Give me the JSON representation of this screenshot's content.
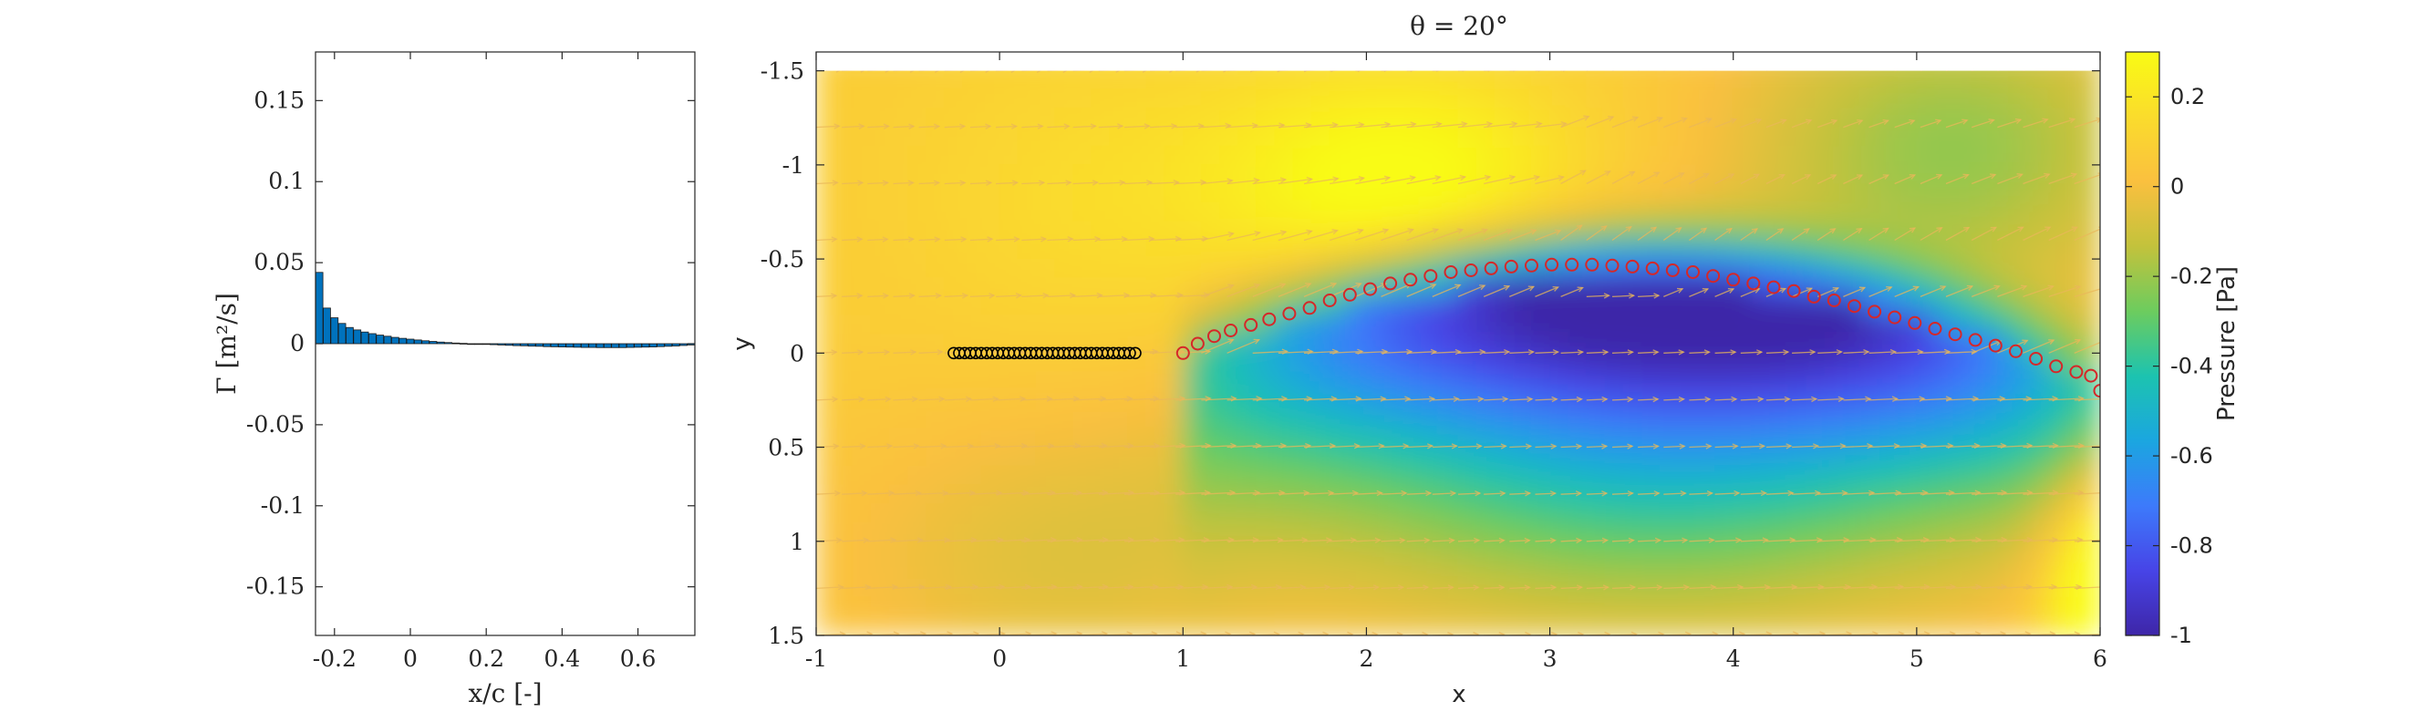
{
  "chart_data": [
    {
      "type": "bar",
      "xlabel": "x/c [-]",
      "ylabel": "Γ [m²/s]",
      "xlim": [
        -0.25,
        0.75
      ],
      "ylim": [
        -0.18,
        0.18
      ],
      "xticks": [
        "-0.2",
        "0",
        "0.2",
        "0.4",
        "0.6"
      ],
      "yticks": [
        "0.15",
        "0.1",
        "0.05",
        "0",
        "-0.05",
        "-0.1",
        "-0.15"
      ],
      "bar_color": "#0072BD",
      "x": [
        -0.24,
        -0.22,
        -0.2,
        -0.18,
        -0.16,
        -0.14,
        -0.12,
        -0.1,
        -0.08,
        -0.06,
        -0.04,
        -0.02,
        0.0,
        0.02,
        0.04,
        0.06,
        0.08,
        0.1,
        0.12,
        0.14,
        0.16,
        0.18,
        0.2,
        0.22,
        0.24,
        0.26,
        0.28,
        0.3,
        0.32,
        0.34,
        0.36,
        0.38,
        0.4,
        0.42,
        0.44,
        0.46,
        0.48,
        0.5,
        0.52,
        0.54,
        0.56,
        0.58,
        0.6,
        0.62,
        0.64,
        0.66,
        0.68,
        0.7,
        0.72,
        0.74
      ],
      "values": [
        0.044,
        0.022,
        0.016,
        0.0125,
        0.01,
        0.0085,
        0.0072,
        0.0062,
        0.0053,
        0.0046,
        0.0039,
        0.0033,
        0.0028,
        0.0023,
        0.0018,
        0.0014,
        0.001,
        0.0007,
        0.0004,
        0.0002,
        0.0,
        -0.0002,
        -0.0004,
        -0.0006,
        -0.0008,
        -0.001,
        -0.0012,
        -0.0013,
        -0.0015,
        -0.0016,
        -0.0018,
        -0.0019,
        -0.002,
        -0.0021,
        -0.0022,
        -0.0023,
        -0.0023,
        -0.0024,
        -0.0024,
        -0.0024,
        -0.0024,
        -0.0023,
        -0.0022,
        -0.0021,
        -0.002,
        -0.0018,
        -0.0016,
        -0.0014,
        -0.0011,
        -0.0008
      ]
    },
    {
      "type": "heatmap",
      "title": "θ = 20°",
      "xlabel": "x",
      "ylabel": "y",
      "xlim": [
        -1,
        6
      ],
      "ylim": [
        -1.6,
        1.5
      ],
      "y_reversed": true,
      "xticks": [
        "-1",
        "0",
        "1",
        "2",
        "3",
        "4",
        "5",
        "6"
      ],
      "yticks": [
        "-1.5",
        "-1",
        "-0.5",
        "0",
        "0.5",
        "1",
        "1.5"
      ],
      "colorbar": {
        "label": "Pressure [Pa]",
        "range": [
          -1,
          0.3
        ],
        "ticks": [
          "0.2",
          "0",
          "-0.2",
          "-0.4",
          "-0.6",
          "-0.8",
          "-1"
        ],
        "colormap": [
          "#3E26A8",
          "#4744E7",
          "#3D7AFB",
          "#1BA6E0",
          "#1CC3B0",
          "#6DCC5E",
          "#C3C23C",
          "#FAC03F",
          "#FADC2C",
          "#F9FB14"
        ]
      },
      "quiver_color": "#E9B75A",
      "wing_markers": {
        "color": "#000000",
        "y": 0.0,
        "x": [
          -0.25,
          -0.22,
          -0.19,
          -0.16,
          -0.13,
          -0.1,
          -0.07,
          -0.04,
          -0.01,
          0.02,
          0.05,
          0.08,
          0.11,
          0.14,
          0.17,
          0.2,
          0.23,
          0.26,
          0.29,
          0.32,
          0.35,
          0.38,
          0.41,
          0.44,
          0.47,
          0.5,
          0.53,
          0.56,
          0.59,
          0.62,
          0.65,
          0.68,
          0.71,
          0.74
        ]
      },
      "wake_markers": {
        "color": "#D62728",
        "points": [
          [
            1.0,
            0.0
          ],
          [
            1.08,
            -0.05
          ],
          [
            1.17,
            -0.09
          ],
          [
            1.26,
            -0.12
          ],
          [
            1.37,
            -0.15
          ],
          [
            1.47,
            -0.18
          ],
          [
            1.58,
            -0.21
          ],
          [
            1.69,
            -0.24
          ],
          [
            1.8,
            -0.28
          ],
          [
            1.91,
            -0.31
          ],
          [
            2.02,
            -0.34
          ],
          [
            2.13,
            -0.37
          ],
          [
            2.24,
            -0.39
          ],
          [
            2.35,
            -0.41
          ],
          [
            2.46,
            -0.43
          ],
          [
            2.57,
            -0.44
          ],
          [
            2.68,
            -0.45
          ],
          [
            2.79,
            -0.46
          ],
          [
            2.9,
            -0.465
          ],
          [
            3.01,
            -0.47
          ],
          [
            3.12,
            -0.47
          ],
          [
            3.23,
            -0.47
          ],
          [
            3.34,
            -0.465
          ],
          [
            3.45,
            -0.46
          ],
          [
            3.56,
            -0.45
          ],
          [
            3.67,
            -0.44
          ],
          [
            3.78,
            -0.43
          ],
          [
            3.89,
            -0.41
          ],
          [
            4.0,
            -0.39
          ],
          [
            4.11,
            -0.37
          ],
          [
            4.22,
            -0.35
          ],
          [
            4.33,
            -0.33
          ],
          [
            4.44,
            -0.3
          ],
          [
            4.55,
            -0.28
          ],
          [
            4.66,
            -0.25
          ],
          [
            4.77,
            -0.22
          ],
          [
            4.88,
            -0.19
          ],
          [
            4.99,
            -0.16
          ],
          [
            5.1,
            -0.13
          ],
          [
            5.21,
            -0.1
          ],
          [
            5.32,
            -0.07
          ],
          [
            5.43,
            -0.04
          ],
          [
            5.54,
            -0.01
          ],
          [
            5.65,
            0.03
          ],
          [
            5.76,
            0.07
          ],
          [
            5.87,
            0.1
          ],
          [
            5.95,
            0.12
          ],
          [
            6.0,
            0.2
          ]
        ]
      }
    }
  ]
}
